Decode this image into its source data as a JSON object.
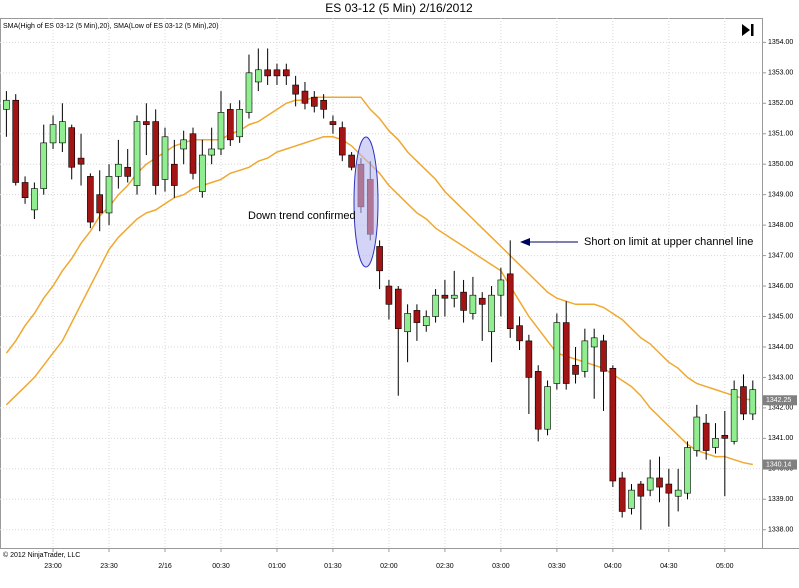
{
  "chart_data": {
    "type": "candlestick",
    "title": "ES 03-12 (5 Min)  2/16/2012",
    "legend_text": "SMA(High of ES 03-12 (5 Min),20), SMA(Low of ES 03-12 (5 Min),20)",
    "copyright": "© 2012 NinjaTrader, LLC",
    "annotations": [
      "Down trend confirmed",
      "Short on limit at upper channel line"
    ],
    "categories": [
      null,
      null,
      null,
      null,
      null,
      "23:00",
      null,
      null,
      null,
      null,
      null,
      "23:30",
      null,
      null,
      null,
      null,
      null,
      "2/16",
      null,
      null,
      null,
      null,
      null,
      "00:30",
      null,
      null,
      null,
      null,
      null,
      "01:00",
      null,
      null,
      null,
      null,
      null,
      "01:30",
      null,
      null,
      null,
      null,
      null,
      "02:00",
      null,
      null,
      null,
      null,
      null,
      "02:30",
      null,
      null,
      null,
      null,
      null,
      "03:00",
      null,
      null,
      null,
      null,
      null,
      "03:30",
      null,
      null,
      null,
      null,
      null,
      "04:00",
      null,
      null,
      null,
      null,
      null,
      "04:30",
      null,
      null,
      null,
      null,
      null,
      "05:00",
      null,
      null,
      null
    ],
    "open": [
      1351.8,
      1352.1,
      1349.4,
      1348.5,
      1349.2,
      1350.7,
      1350.7,
      1351.2,
      1350.2,
      1349.6,
      1349.0,
      1348.4,
      1349.6,
      1349.9,
      1349.3,
      1351.4,
      1351.4,
      1349.5,
      1350.0,
      1350.5,
      1351.0,
      1349.1,
      1350.3,
      1350.5,
      1351.8,
      1350.9,
      1351.7,
      1352.7,
      1353.1,
      1353.1,
      1353.1,
      1352.6,
      1352.4,
      1352.2,
      1352.1,
      1351.4,
      1351.2,
      1350.3,
      1350.0,
      1349.5,
      1347.3,
      1346.0,
      1345.9,
      1344.5,
      1345.2,
      1344.7,
      1345.0,
      1345.7,
      1345.6,
      1345.8,
      1345.1,
      1345.6,
      1344.5,
      1345.7,
      1346.4,
      1344.7,
      1344.2,
      1343.2,
      1341.3,
      1342.8,
      1344.8,
      1343.4,
      1343.2,
      1344.0,
      1344.2,
      1343.3,
      1339.7,
      1338.7,
      1339.5,
      1339.3,
      1339.7,
      1339.5,
      1339.1,
      1339.2,
      1340.6,
      1341.5,
      1340.7,
      1341.1,
      1340.9,
      1342.7,
      1341.8
    ],
    "high": [
      1352.4,
      1352.3,
      1349.6,
      1349.4,
      1351.3,
      1351.6,
      1352.0,
      1351.3,
      1351.0,
      1349.7,
      1349.8,
      1350.0,
      1350.8,
      1350.5,
      1351.6,
      1352.0,
      1351.8,
      1351.2,
      1350.8,
      1351.1,
      1351.2,
      1350.8,
      1351.2,
      1352.4,
      1352.0,
      1352.1,
      1353.6,
      1353.8,
      1353.8,
      1353.3,
      1353.3,
      1352.9,
      1352.7,
      1352.4,
      1352.3,
      1351.6,
      1351.4,
      1350.4,
      1350.2,
      1350.1,
      1347.5,
      1346.2,
      1346.0,
      1345.4,
      1345.4,
      1345.2,
      1345.9,
      1346.2,
      1346.5,
      1346.2,
      1346.3,
      1345.8,
      1346.0,
      1346.6,
      1347.5,
      1345.0,
      1344.4,
      1343.4,
      1342.9,
      1345.1,
      1345.5,
      1344.0,
      1344.6,
      1344.6,
      1344.4,
      1343.4,
      1339.9,
      1339.5,
      1339.6,
      1340.3,
      1340.4,
      1340.0,
      1340.0,
      1340.9,
      1342.1,
      1341.8,
      1341.5,
      1341.9,
      1342.9,
      1343.1,
      1342.9
    ],
    "low": [
      1350.9,
      1349.3,
      1348.7,
      1348.2,
      1349.0,
      1350.5,
      1350.4,
      1349.5,
      1349.3,
      1347.9,
      1347.8,
      1348.0,
      1349.2,
      1349.4,
      1349.0,
      1350.3,
      1349.0,
      1349.1,
      1348.9,
      1350.0,
      1349.5,
      1348.9,
      1350.0,
      1350.3,
      1350.6,
      1350.7,
      1351.5,
      1352.4,
      1352.6,
      1352.6,
      1352.6,
      1351.9,
      1351.8,
      1351.7,
      1351.5,
      1351.0,
      1350.1,
      1349.8,
      1348.4,
      1347.5,
      1345.9,
      1344.9,
      1342.4,
      1343.5,
      1344.2,
      1344.5,
      1344.8,
      1345.0,
      1345.3,
      1344.8,
      1344.9,
      1344.2,
      1343.5,
      1345.0,
      1344.3,
      1343.9,
      1341.8,
      1340.9,
      1341.1,
      1342.6,
      1342.6,
      1342.8,
      1343.0,
      1342.3,
      1341.9,
      1339.4,
      1338.4,
      1338.5,
      1338.0,
      1339.1,
      1338.9,
      1338.1,
      1338.6,
      1339.0,
      1340.4,
      1340.3,
      1340.5,
      1339.1,
      1340.8,
      1341.6,
      1341.6
    ],
    "close": [
      1352.1,
      1349.4,
      1348.9,
      1349.2,
      1350.7,
      1351.3,
      1351.4,
      1349.9,
      1350.0,
      1348.1,
      1348.4,
      1349.6,
      1350.0,
      1349.6,
      1351.4,
      1351.3,
      1349.3,
      1350.9,
      1349.3,
      1350.8,
      1349.7,
      1350.3,
      1350.5,
      1351.7,
      1350.8,
      1351.8,
      1353.0,
      1353.1,
      1352.9,
      1352.9,
      1352.9,
      1352.3,
      1352.0,
      1351.9,
      1351.8,
      1351.3,
      1350.3,
      1349.9,
      1348.6,
      1347.7,
      1346.5,
      1345.4,
      1344.6,
      1345.1,
      1344.8,
      1345.0,
      1345.7,
      1345.6,
      1345.7,
      1345.2,
      1345.7,
      1345.4,
      1345.7,
      1346.2,
      1344.6,
      1344.2,
      1343.0,
      1341.3,
      1342.7,
      1344.8,
      1342.8,
      1343.1,
      1344.2,
      1344.3,
      1343.2,
      1339.6,
      1338.6,
      1339.3,
      1339.1,
      1339.7,
      1339.4,
      1339.2,
      1339.3,
      1340.7,
      1341.7,
      1340.6,
      1341.0,
      1341.0,
      1342.6,
      1341.8,
      1342.6
    ],
    "up_color": "#90ee90",
    "down_color": "#a31414",
    "series": [
      {
        "color": "#f0a830",
        "values": [
          1343.8,
          1344.2,
          1344.7,
          1345.1,
          1345.6,
          1346.0,
          1346.5,
          1346.9,
          1347.4,
          1347.8,
          1348.3,
          1348.6,
          1349.0,
          1349.3,
          1349.7,
          1350.0,
          1350.2,
          1350.4,
          1350.6,
          1350.7,
          1350.8,
          1350.8,
          1350.8,
          1350.8,
          1351.0,
          1351.1,
          1351.3,
          1351.4,
          1351.6,
          1351.8,
          1352.0,
          1352.1,
          1352.1,
          1352.2,
          1352.2,
          1352.2,
          1352.2,
          1352.2,
          1352.2,
          1351.8,
          1351.5,
          1351.1,
          1350.8,
          1350.4,
          1350.1,
          1349.8,
          1349.5,
          1349.1,
          1348.8,
          1348.5,
          1348.2,
          1347.9,
          1347.6,
          1347.3,
          1347.0,
          1346.7,
          1346.4,
          1346.1,
          1345.8,
          1345.6,
          1345.5,
          1345.4,
          1345.4,
          1345.4,
          1345.3,
          1345.1,
          1344.9,
          1344.6,
          1344.3,
          1344.1,
          1343.8,
          1343.5,
          1343.3,
          1343.0,
          1342.8,
          1342.7,
          1342.6,
          1342.5,
          1342.4,
          1342.3,
          1342.25
        ]
      },
      {
        "color": "#f0a830",
        "values": [
          1342.1,
          1342.4,
          1342.7,
          1343.0,
          1343.4,
          1343.8,
          1344.2,
          1344.8,
          1345.4,
          1346.0,
          1346.6,
          1347.2,
          1347.6,
          1347.9,
          1348.2,
          1348.4,
          1348.5,
          1348.7,
          1348.9,
          1349.0,
          1349.2,
          1349.3,
          1349.4,
          1349.5,
          1349.7,
          1349.8,
          1349.9,
          1350.1,
          1350.2,
          1350.4,
          1350.5,
          1350.6,
          1350.7,
          1350.8,
          1350.9,
          1350.9,
          1350.8,
          1350.6,
          1350.3,
          1350.0,
          1349.7,
          1349.3,
          1349.0,
          1348.7,
          1348.4,
          1348.2,
          1347.9,
          1347.7,
          1347.5,
          1347.3,
          1347.1,
          1346.9,
          1346.7,
          1346.5,
          1346.0,
          1345.5,
          1345.0,
          1344.6,
          1344.2,
          1343.8,
          1343.7,
          1343.6,
          1343.5,
          1343.4,
          1343.3,
          1343.1,
          1342.9,
          1342.7,
          1342.4,
          1342.0,
          1341.7,
          1341.4,
          1341.1,
          1340.8,
          1340.6,
          1340.5,
          1340.4,
          1340.4,
          1340.3,
          1340.2,
          1340.14
        ]
      }
    ],
    "ylim": [
      1337.4,
      1354.8
    ],
    "yticks": [
      {
        "value": 1338,
        "label": "1338.00"
      },
      {
        "value": 1339,
        "label": "1339.00"
      },
      {
        "value": 1340,
        "label": "1340.00"
      },
      {
        "value": 1341,
        "label": "1341.00"
      },
      {
        "value": 1342,
        "label": "1342.00"
      },
      {
        "value": 1343,
        "label": "1343.00"
      },
      {
        "value": 1344,
        "label": "1344.00"
      },
      {
        "value": 1345,
        "label": "1345.00"
      },
      {
        "value": 1346,
        "label": "1346.00"
      },
      {
        "value": 1347,
        "label": "1347.00"
      },
      {
        "value": 1348,
        "label": "1348.00"
      },
      {
        "value": 1349,
        "label": "1349.00"
      },
      {
        "value": 1350,
        "label": "1350.00"
      },
      {
        "value": 1351,
        "label": "1351.00"
      },
      {
        "value": 1352,
        "label": "1352.00"
      },
      {
        "value": 1353,
        "label": "1353.00"
      },
      {
        "value": 1354,
        "label": "1354.00"
      }
    ],
    "grid": true
  }
}
